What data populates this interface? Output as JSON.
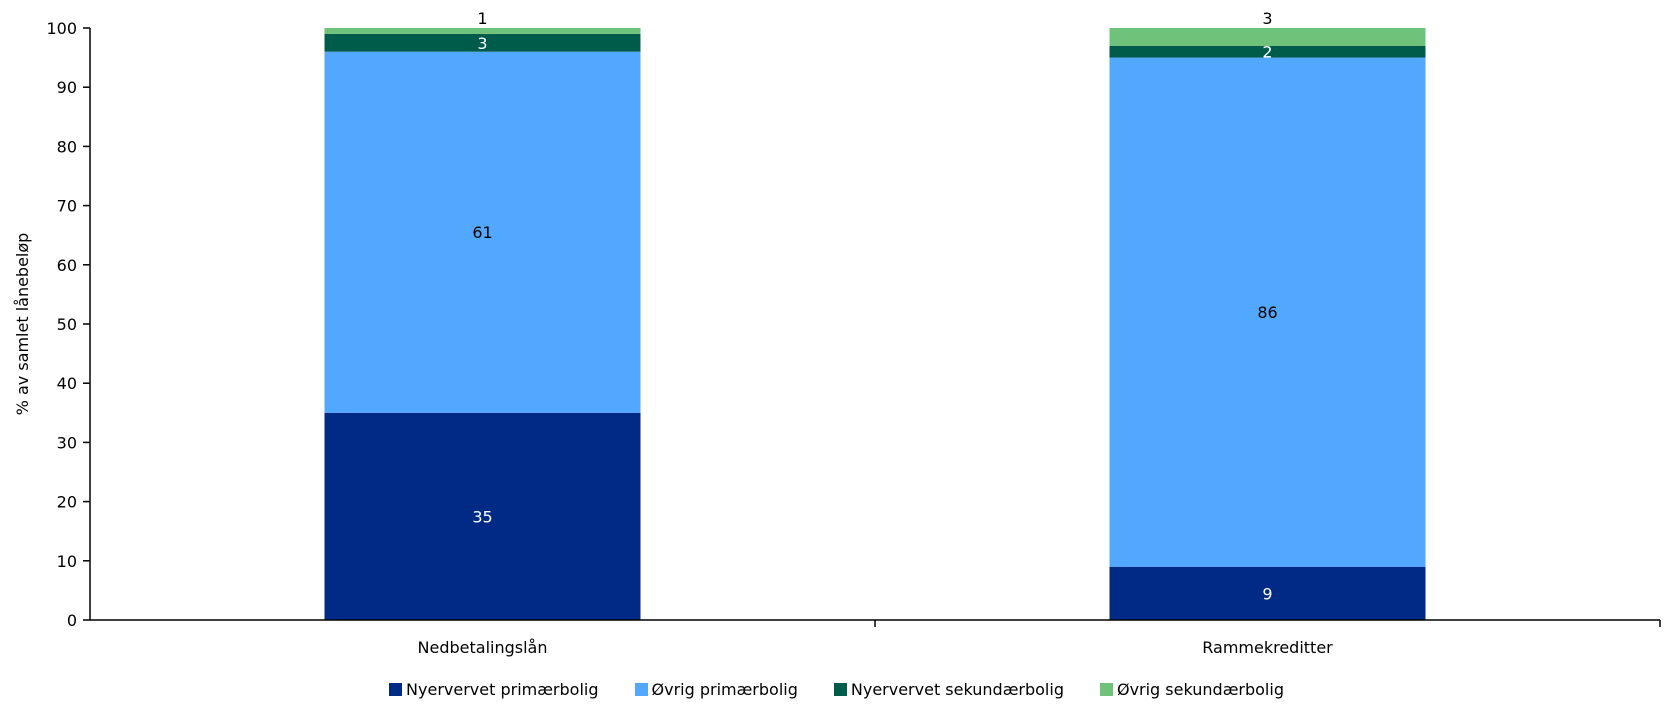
{
  "chart_data": {
    "type": "bar",
    "stacked": true,
    "categories": [
      "Nedbetalingslån",
      "Rammekreditter"
    ],
    "series": [
      {
        "name": "Nyervervet primærbolig",
        "values": [
          35,
          9
        ],
        "labels": [
          "35",
          "9"
        ],
        "color": "#002a85",
        "label_color": "#ffffff"
      },
      {
        "name": "Øvrig primærbolig",
        "values": [
          61,
          86
        ],
        "labels": [
          "61",
          "86"
        ],
        "color": "#52a8ff",
        "label_color": "#000000"
      },
      {
        "name": "Nyervervet sekundærbolig",
        "values": [
          3,
          2
        ],
        "labels": [
          "3",
          "2"
        ],
        "color": "#005c4a",
        "label_color": "#ffffff"
      },
      {
        "name": "Øvrig sekundærbolig",
        "values": [
          1,
          3
        ],
        "labels": [
          "1",
          "3"
        ],
        "color": "#6fc27a",
        "label_color": "#000000"
      }
    ],
    "xlabel": "",
    "ylabel": "% av samlet lånebeløp",
    "ylim": [
      0,
      100
    ],
    "yticks": [
      0,
      10,
      20,
      30,
      40,
      50,
      60,
      70,
      80,
      90,
      100
    ],
    "grid": false,
    "legend_position": "bottom"
  }
}
